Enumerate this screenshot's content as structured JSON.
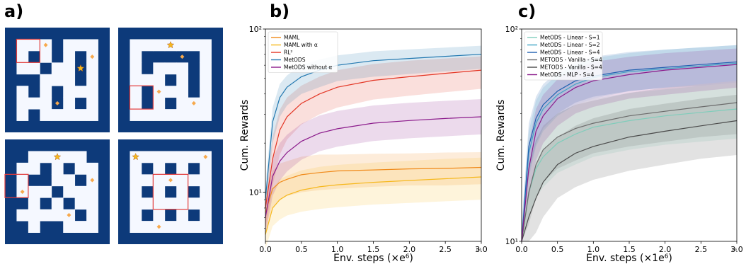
{
  "panels": {
    "a": {
      "label": "a)"
    },
    "b": {
      "label": "b)"
    },
    "c": {
      "label": "c)"
    }
  },
  "mazes": [
    {
      "grid": [
        "#########",
        "#...#...#",
        "#.#.#.#.#",
        "#..#..#.#",
        "###...#.#",
        "#.#.#...#",
        "#...#.#.#",
        "#.#.....#",
        "#########"
      ],
      "star": [
        3,
        6
      ],
      "diamonds": [
        [
          1,
          3
        ],
        [
          6,
          4
        ],
        [
          2,
          7
        ]
      ],
      "box": [
        1,
        1,
        2,
        2
      ]
    },
    {
      "grid": [
        "#########",
        "#.......#",
        "#.#####.#",
        "#.#...#.#",
        "#...#.#.#",
        "#.#...#.#",
        "#.#.#...#",
        "#.......#",
        "#########"
      ],
      "star": [
        1,
        4
      ],
      "diamonds": [
        [
          2,
          5
        ],
        [
          5,
          3
        ],
        [
          6,
          6
        ]
      ],
      "box": [
        5,
        1,
        2,
        2
      ]
    },
    {
      "grid": [
        "#########",
        "##.....##",
        "#..#.#..#",
        "#.##..#.#",
        "#...#...#",
        "##.#.#..#",
        "#.....#.#",
        "##.##...#",
        "#########"
      ],
      "star": [
        1,
        4
      ],
      "diamonds": [
        [
          4,
          1
        ],
        [
          6,
          5
        ],
        [
          3,
          7
        ]
      ],
      "box": [
        3,
        0,
        2,
        2
      ]
    },
    {
      "grid": [
        "#########",
        "#.......#",
        "#.#.#.#.#",
        "#.......#",
        "#.#.#.#.#",
        "#.......#",
        "#.#.#.#.#",
        "#.......#",
        "#########"
      ],
      "star": [
        1,
        1
      ],
      "diamonds": [
        [
          3,
          4
        ],
        [
          7,
          3
        ],
        [
          1,
          7
        ]
      ],
      "box": [
        3,
        3,
        3,
        3
      ]
    }
  ],
  "colors": {
    "wall": "#0d3a7a",
    "floor": "#f5f8ff",
    "star": "#f6b81d",
    "diamond": "#f7a94c",
    "box": "#e23b3b"
  },
  "chart_data": [
    {
      "type": "line",
      "panel": "b",
      "xlabel": "Env. steps (×e⁶)",
      "ylabel": "Cum. Rewards",
      "xlim": [
        0,
        3.0
      ],
      "ylim": [
        5,
        100
      ],
      "yscale": "log",
      "xticks": [
        "0.0",
        "0.5",
        "1.0",
        "1.5",
        "2.0",
        "2.5",
        "3.0"
      ],
      "yticks": [
        {
          "v": 100,
          "label": "10²"
        },
        {
          "v": 10,
          "label": "10¹"
        }
      ],
      "corner_note": "1e6",
      "legend_position": "top-left",
      "x": [
        0.0,
        0.1,
        0.2,
        0.3,
        0.5,
        0.75,
        1.0,
        1.5,
        2.0,
        2.5,
        3.0
      ],
      "series": [
        {
          "name": "MAML",
          "color": "#f08a1a",
          "values": [
            7.5,
            10.5,
            11.5,
            12,
            12.8,
            13.2,
            13.5,
            13.7,
            13.9,
            14,
            14.2
          ],
          "band": [
            [
              5.5,
              9.5
            ],
            [
              8,
              13.5
            ],
            [
              9,
              15
            ],
            [
              9.5,
              15.5
            ],
            [
              10,
              16.5
            ],
            [
              10.3,
              17
            ],
            [
              10.5,
              17
            ],
            [
              10.8,
              17.2
            ],
            [
              11,
              17.3
            ],
            [
              11,
              17.5
            ],
            [
              11.2,
              17.6
            ]
          ]
        },
        {
          "name": "MAML with α",
          "color": "#f6b81d",
          "values": [
            5.5,
            8,
            9,
            9.6,
            10.3,
            10.8,
            11.1,
            11.5,
            11.8,
            12.1,
            12.4
          ],
          "band": [
            [
              4.5,
              7
            ],
            [
              6.2,
              10.5
            ],
            [
              6.8,
              12
            ],
            [
              7.2,
              12.6
            ],
            [
              7.6,
              13.6
            ],
            [
              7.9,
              14.3
            ],
            [
              8.1,
              14.7
            ],
            [
              8.4,
              15.2
            ],
            [
              8.6,
              15.6
            ],
            [
              8.8,
              16
            ],
            [
              9,
              16.3
            ]
          ]
        },
        {
          "name": "RL²",
          "color": "#e33524",
          "values": [
            8,
            16,
            24,
            29,
            35,
            40,
            44,
            48.5,
            51,
            53.5,
            56
          ],
          "band": [
            [
              6,
              10
            ],
            [
              11,
              22
            ],
            [
              17,
              32
            ],
            [
              21,
              38
            ],
            [
              26,
              45
            ],
            [
              30,
              51
            ],
            [
              33,
              56
            ],
            [
              37,
              61
            ],
            [
              39,
              64
            ],
            [
              41,
              66
            ],
            [
              43,
              68
            ]
          ]
        },
        {
          "name": "MetODS",
          "color": "#2278b0",
          "values": [
            9,
            27,
            38,
            44,
            51,
            56,
            60,
            64,
            66,
            68,
            70
          ],
          "band": [
            [
              7,
              11
            ],
            [
              20,
              33
            ],
            [
              29,
              46
            ],
            [
              34,
              52
            ],
            [
              40,
              60
            ],
            [
              44,
              65
            ],
            [
              48,
              69
            ],
            [
              51,
              73
            ],
            [
              53,
              75
            ],
            [
              55,
              77
            ],
            [
              57,
              79
            ]
          ]
        },
        {
          "name": "MetODS without α",
          "color": "#8b1a8b",
          "values": [
            7,
            12.5,
            15.5,
            17.5,
            20.5,
            23,
            24.5,
            26.5,
            27.5,
            28.3,
            29
          ],
          "band": [
            [
              5.5,
              8.5
            ],
            [
              9.5,
              16
            ],
            [
              11.8,
              20
            ],
            [
              13.4,
              22.5
            ],
            [
              15.8,
              26.3
            ],
            [
              17.8,
              29.5
            ],
            [
              19,
              31.5
            ],
            [
              20.6,
              34
            ],
            [
              21.4,
              35.3
            ],
            [
              22,
              36.3
            ],
            [
              22.6,
              37.2
            ]
          ]
        }
      ]
    },
    {
      "type": "line",
      "panel": "c",
      "xlabel": "Env. steps (×1e⁶)",
      "ylabel": "Cum. Rewards",
      "xlim": [
        0,
        3.0
      ],
      "ylim": [
        10,
        100
      ],
      "yscale": "log",
      "xticks": [
        "0.0",
        "0.5",
        "1.0",
        "1.5",
        "2.0",
        "2.5",
        "3.0"
      ],
      "yticks": [
        {
          "v": 100,
          "label": "10²"
        },
        {
          "v": 10,
          "label": "10¹"
        }
      ],
      "corner_note": "1e6",
      "legend_position": "top-left",
      "x": [
        0.0,
        0.1,
        0.2,
        0.3,
        0.5,
        0.75,
        1.0,
        1.5,
        2.0,
        2.5,
        3.0
      ],
      "series": [
        {
          "name": "MetODS - Linear - S=1",
          "color": "#7fcdbb",
          "values": [
            10,
            17,
            22,
            25,
            29,
            32,
            34.5,
            37,
            39,
            40.5,
            42
          ],
          "band": [
            [
              10,
              11
            ],
            [
              13,
              23
            ],
            [
              16,
              30
            ],
            [
              18,
              34
            ],
            [
              21,
              40
            ],
            [
              23,
              44
            ],
            [
              25,
              47
            ],
            [
              27,
              50
            ],
            [
              28.5,
              52
            ],
            [
              29.5,
              54
            ],
            [
              30.5,
              56
            ]
          ]
        },
        {
          "name": "MetODS - Linear - S=2",
          "color": "#41a5c5",
          "values": [
            10,
            26,
            36,
            42,
            49,
            55,
            59,
            63,
            65,
            67,
            69
          ],
          "band": [
            [
              10,
              12
            ],
            [
              20,
              33
            ],
            [
              28,
              46
            ],
            [
              33,
              53
            ],
            [
              39,
              61
            ],
            [
              44,
              68
            ],
            [
              47,
              73
            ],
            [
              51,
              77
            ],
            [
              53,
              80
            ],
            [
              54,
              82
            ],
            [
              56,
              84
            ]
          ]
        },
        {
          "name": "MetODS - Linear - S=4",
          "color": "#1f5fb0",
          "values": [
            10,
            28,
            38,
            44,
            51,
            57,
            60,
            64,
            66,
            68,
            70
          ],
          "band": [
            [
              10,
              12
            ],
            [
              21,
              36
            ],
            [
              29,
              48
            ],
            [
              34,
              55
            ],
            [
              40,
              63
            ],
            [
              45,
              70
            ],
            [
              48,
              74
            ],
            [
              51,
              78
            ],
            [
              53,
              80
            ],
            [
              55,
              82
            ],
            [
              57,
              84
            ]
          ]
        },
        {
          "name": "METODS - Vanilla - S=4",
          "color": "#6b6b6b",
          "values": [
            10,
            17,
            23,
            27,
            31,
            34,
            36,
            39,
            41,
            43,
            45
          ],
          "band": [
            [
              10,
              11
            ],
            [
              12,
              23
            ],
            [
              16,
              30
            ],
            [
              19,
              35
            ],
            [
              22,
              40
            ],
            [
              24,
              44
            ],
            [
              26,
              46
            ],
            [
              28,
              50
            ],
            [
              29.5,
              53
            ],
            [
              31,
              55
            ],
            [
              32,
              57
            ]
          ]
        },
        {
          "name": "METODS - Vanilla - S=4",
          "color": "#4a4a4a",
          "values": [
            10,
            13,
            16,
            19,
            23,
            26,
            28,
            31,
            33,
            35,
            37
          ],
          "band": [
            [
              10,
              10.5
            ],
            [
              10,
              17
            ],
            [
              11,
              23
            ],
            [
              13,
              27
            ],
            [
              16,
              31
            ],
            [
              18,
              35
            ],
            [
              19.5,
              38
            ],
            [
              21.5,
              42
            ],
            [
              23,
              44.5
            ],
            [
              24.5,
              47
            ],
            [
              25.5,
              49
            ]
          ]
        },
        {
          "name": "MetODS - MLP - S=4",
          "color": "#8b1a8b",
          "values": [
            10,
            22,
            33,
            39,
            47,
            53,
            57,
            61,
            64,
            66,
            68
          ],
          "band": [
            [
              10,
              11
            ],
            [
              16,
              29
            ],
            [
              24,
              42
            ],
            [
              29,
              49
            ],
            [
              35,
              58
            ],
            [
              40,
              65
            ],
            [
              43,
              70
            ],
            [
              47,
              74
            ],
            [
              49,
              77
            ],
            [
              51,
              79
            ],
            [
              53,
              81
            ]
          ]
        }
      ]
    }
  ]
}
